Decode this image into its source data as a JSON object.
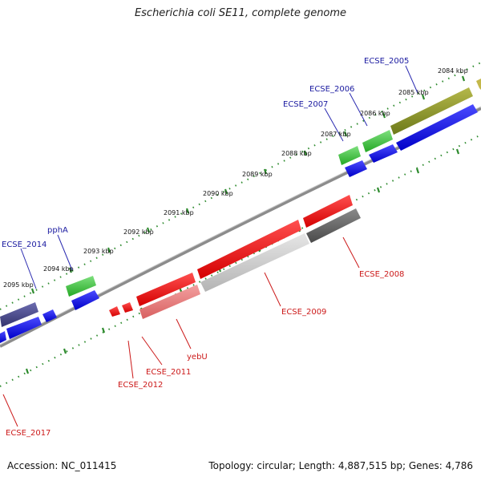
{
  "title": "Escherichia coli SE11, complete genome",
  "footer": {
    "accession": "Accession: NC_011415",
    "topology": "Topology: circular; Length: 4,887,515 bp; Genes: 4,786"
  },
  "colors": {
    "upper_label": "#1a1aa0",
    "lower_label": "#cc1a1a",
    "tick": "#2e8b2e",
    "backbone": "#7a7a7a"
  },
  "kbp_labels": [
    "2084 kbp",
    "2085 kbp",
    "2086 kbp",
    "2087 kbp",
    "2088 kbp",
    "2089 kbp",
    "2090 kbp",
    "2091 kbp",
    "2092 kbp",
    "2093 kbp",
    "2094 kbp",
    "2095 kbp"
  ],
  "upper_gene_labels": [
    "ECSE_2005",
    "ECSE_2006",
    "ECSE_2007",
    "pphA",
    "ECSE_2014"
  ],
  "lower_gene_labels": [
    "ECSE_2008",
    "ECSE_2009",
    "yebU",
    "ECSE_2011",
    "ECSE_2012",
    "ECSE_2017"
  ]
}
